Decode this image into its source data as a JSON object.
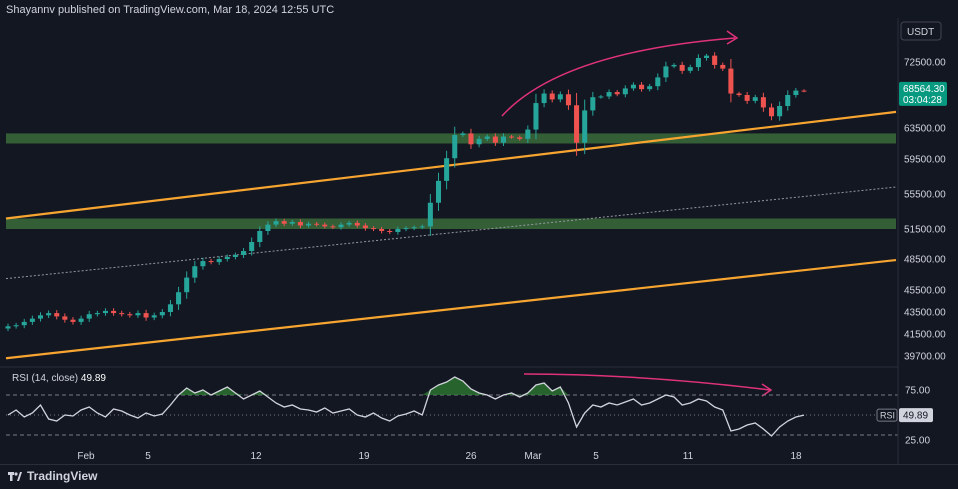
{
  "header": {
    "published": "Shayannv published on TradingView.com, Mar 18, 2024 12:55 UTC"
  },
  "footer": {
    "brand": "TradingView"
  },
  "colors": {
    "background": "#131722",
    "up": "#26a69a",
    "down": "#ef5350",
    "trendline": "#f7a530",
    "zone": "#3b6b3a",
    "arrow": "#e0327a",
    "rsi_line": "#d1d4dc",
    "rsi_fill": "#2e7d32",
    "price_badge": "#089981"
  },
  "chart_data": [
    {
      "type": "candlestick",
      "title": "",
      "currency_label": "USDT",
      "y_ticks": [
        "72500.00",
        "63500.00",
        "59500.00",
        "55500.00",
        "51500.00",
        "48500.00",
        "45500.00",
        "43500.00",
        "41500.00",
        "39700.00"
      ],
      "x_ticks": [
        "Feb",
        "5",
        "12",
        "19",
        "26",
        "Mar",
        "5",
        "11",
        "18"
      ],
      "last_price": "68564.30",
      "countdown": "03:04:28",
      "close_series": [
        42200,
        42300,
        42600,
        42900,
        43200,
        43400,
        43100,
        42800,
        42600,
        42900,
        43300,
        43400,
        43600,
        43400,
        43300,
        43200,
        43400,
        43000,
        43200,
        43500,
        44200,
        45300,
        46700,
        47800,
        48300,
        48200,
        48500,
        48700,
        48900,
        49300,
        50200,
        51300,
        52000,
        52400,
        52100,
        52300,
        51900,
        52100,
        52000,
        51800,
        51700,
        52000,
        52200,
        51900,
        51600,
        51500,
        51300,
        51200,
        51500,
        51600,
        51700,
        51800,
        54500,
        57000,
        59600,
        62600,
        62800,
        61400,
        62100,
        62400,
        61600,
        62400,
        62300,
        62100,
        63300,
        66900,
        68200,
        67400,
        68100,
        66600,
        61600,
        65900,
        67700,
        67800,
        68400,
        68100,
        68900,
        69400,
        68800,
        69200,
        70400,
        71900,
        72100,
        71300,
        71800,
        72900,
        73200,
        72100,
        71600,
        68200,
        68000,
        67200,
        67700,
        66300,
        65100,
        66500,
        68000,
        68600,
        68564
      ],
      "support_zones": [
        [
          61500,
          62800
        ],
        [
          51500,
          52700
        ]
      ],
      "channel_lines": [
        {
          "from": [
            "Jan 22",
            52700
          ],
          "to": [
            "Mar 24",
            65700
          ],
          "style": "solid"
        },
        {
          "from": [
            "Jan 22",
            46600
          ],
          "to": [
            "Mar 24",
            56300
          ],
          "style": "dotted"
        },
        {
          "from": [
            "Jan 22",
            39500
          ],
          "to": [
            "Mar 24",
            48400
          ],
          "style": "solid"
        }
      ]
    },
    {
      "type": "line",
      "legend": "RSI (14, close)",
      "legend_value": "49.89",
      "badge_label": "RSI",
      "y_ticks": [
        "75.00",
        "25.00"
      ],
      "levels": [
        70,
        50,
        30
      ],
      "values": [
        50,
        55,
        48,
        52,
        60,
        46,
        44,
        50,
        49,
        55,
        58,
        52,
        48,
        56,
        54,
        50,
        47,
        52,
        49,
        51,
        60,
        70,
        77,
        72,
        75,
        70,
        74,
        78,
        72,
        66,
        70,
        74,
        68,
        62,
        58,
        60,
        56,
        55,
        53,
        57,
        52,
        54,
        56,
        50,
        48,
        52,
        47,
        44,
        49,
        51,
        54,
        50,
        75,
        80,
        83,
        88,
        84,
        76,
        72,
        70,
        66,
        70,
        72,
        68,
        72,
        80,
        82,
        74,
        78,
        62,
        38,
        52,
        60,
        58,
        62,
        60,
        63,
        66,
        60,
        62,
        66,
        70,
        68,
        60,
        62,
        66,
        64,
        58,
        55,
        34,
        36,
        40,
        42,
        36,
        29,
        38,
        44,
        48,
        49.89
      ]
    }
  ]
}
